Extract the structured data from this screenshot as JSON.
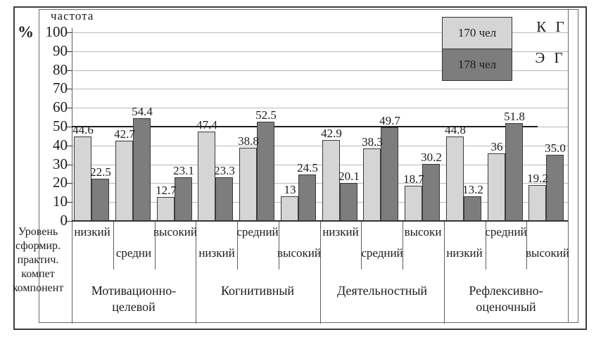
{
  "chart_data": {
    "type": "bar",
    "title": "частота",
    "unit_label": "%",
    "ylim": [
      0,
      100
    ],
    "ytick_step": 10,
    "grid": true,
    "highlight_line_value": 50,
    "legend": {
      "position": "top-right",
      "entries": [
        {
          "name": "К Г",
          "swatch_label": "170 чел",
          "color": "#d5d5d5"
        },
        {
          "name": "Э Г",
          "swatch_label": "178 чел",
          "color": "#7d7d7d"
        }
      ]
    },
    "series": [
      {
        "name": "К Г (170 чел)",
        "color": "#d5d5d5",
        "values": [
          44.6,
          42.7,
          12.7,
          47.4,
          38.8,
          13,
          42.9,
          38.3,
          18.7,
          44.8,
          36,
          19.2
        ]
      },
      {
        "name": "Э Г (178 чел)",
        "color": "#7d7d7d",
        "values": [
          22.5,
          54.4,
          23.1,
          23.3,
          52.5,
          24.5,
          20.1,
          49.7,
          30.2,
          13.2,
          51.8,
          35.0
        ]
      }
    ],
    "categories": [
      "низкий",
      "средни",
      "высокий",
      "низкий",
      "средний",
      "высокий",
      "низкий",
      "средний",
      "высоки",
      "низкий",
      "средний",
      "высокий"
    ],
    "left_axis_label_lines": [
      "Уровень",
      "сформир.",
      "практич.",
      "компет",
      "компонент"
    ],
    "groups": [
      {
        "label_lines": [
          "Мотивационно-",
          "целевой"
        ],
        "levels": [
          {
            "label": "низкий",
            "label_row": 1,
            "kg": 44.6,
            "eg": 22.5,
            "kg_text": "44.6",
            "eg_text": "22.5"
          },
          {
            "label": "средни",
            "label_row": 2,
            "kg": 42.7,
            "eg": 54.4,
            "kg_text": "42.7",
            "eg_text": "54.4"
          },
          {
            "label": "высокий",
            "label_row": 1,
            "kg": 12.7,
            "eg": 23.1,
            "kg_text": "12.7",
            "eg_text": "23.1"
          }
        ]
      },
      {
        "label_lines": [
          "Когнитивный"
        ],
        "levels": [
          {
            "label": "низкий",
            "label_row": 2,
            "kg": 47.4,
            "eg": 23.3,
            "kg_text": "47.4",
            "eg_text": "23.3"
          },
          {
            "label": "средний",
            "label_row": 1,
            "kg": 38.8,
            "eg": 52.5,
            "kg_text": "38.8",
            "eg_text": "52.5"
          },
          {
            "label": "высокий",
            "label_row": 2,
            "kg": 13,
            "eg": 24.5,
            "kg_text": "13",
            "eg_text": "24.5"
          }
        ]
      },
      {
        "label_lines": [
          "Деятельностный"
        ],
        "levels": [
          {
            "label": "низкий",
            "label_row": 1,
            "kg": 42.9,
            "eg": 20.1,
            "kg_text": "42.9",
            "eg_text": "20.1"
          },
          {
            "label": "средний",
            "label_row": 2,
            "kg": 38.3,
            "eg": 49.7,
            "kg_text": "38.3",
            "eg_text": "49.7"
          },
          {
            "label": "высоки",
            "label_row": 1,
            "kg": 18.7,
            "eg": 30.2,
            "kg_text": "18.7",
            "eg_text": "30.2"
          }
        ]
      },
      {
        "label_lines": [
          "Рефлексивно-",
          "оценочный"
        ],
        "levels": [
          {
            "label": "низкий",
            "label_row": 2,
            "kg": 44.8,
            "eg": 13.2,
            "kg_text": "44.8",
            "eg_text": "13.2"
          },
          {
            "label": "средний",
            "label_row": 1,
            "kg": 36,
            "eg": 51.8,
            "kg_text": "36",
            "eg_text": "51.8"
          },
          {
            "label": "высокий",
            "label_row": 2,
            "kg": 19.2,
            "eg": 35.0,
            "kg_text": "19.2",
            "eg_text": "35.0"
          }
        ]
      }
    ]
  }
}
